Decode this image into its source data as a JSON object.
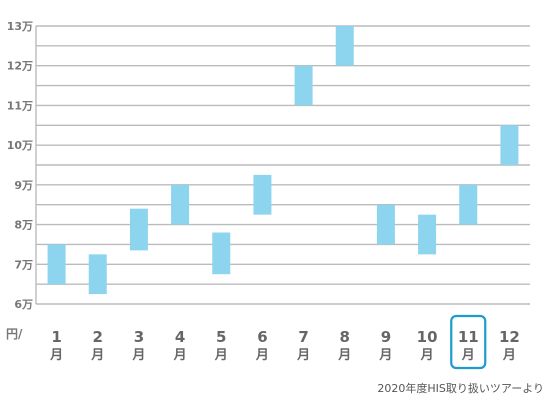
{
  "chart_data": {
    "type": "bar",
    "subtype": "floating-range",
    "categories": [
      {
        "num": "1",
        "unit": "月"
      },
      {
        "num": "2",
        "unit": "月"
      },
      {
        "num": "3",
        "unit": "月"
      },
      {
        "num": "4",
        "unit": "月"
      },
      {
        "num": "5",
        "unit": "月"
      },
      {
        "num": "6",
        "unit": "月"
      },
      {
        "num": "7",
        "unit": "月"
      },
      {
        "num": "8",
        "unit": "月"
      },
      {
        "num": "9",
        "unit": "月"
      },
      {
        "num": "10",
        "unit": "月"
      },
      {
        "num": "11",
        "unit": "月"
      },
      {
        "num": "12",
        "unit": "月"
      }
    ],
    "ranges": [
      [
        65000,
        75000
      ],
      [
        62500,
        72500
      ],
      [
        73500,
        84000
      ],
      [
        80000,
        90000
      ],
      [
        67500,
        78000
      ],
      [
        82500,
        92500
      ],
      [
        110000,
        120000
      ],
      [
        120000,
        130000
      ],
      [
        75000,
        85000
      ],
      [
        72500,
        82500
      ],
      [
        80000,
        90000
      ],
      [
        95000,
        105000
      ]
    ],
    "highlighted_category_index": 10,
    "ylim": [
      60000,
      130000
    ],
    "yticks": [
      {
        "value": 60000,
        "label": "6万"
      },
      {
        "value": 70000,
        "label": "7万"
      },
      {
        "value": 80000,
        "label": "8万"
      },
      {
        "value": 90000,
        "label": "9万"
      },
      {
        "value": 100000,
        "label": "10万"
      },
      {
        "value": 110000,
        "label": "11万"
      },
      {
        "value": 120000,
        "label": "12万"
      },
      {
        "value": 130000,
        "label": "13万"
      }
    ],
    "yunit_label": "円/",
    "source_note": "2020年度HIS取り扱いツアーより",
    "grid": true,
    "colors": {
      "bar": "#8dd4ee",
      "grid": "#bbbbbb",
      "highlight": "#1d9bcf"
    }
  }
}
